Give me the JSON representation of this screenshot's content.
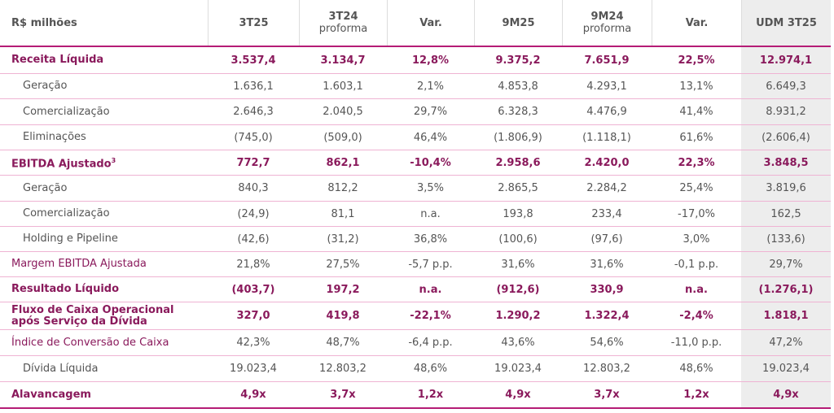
{
  "table": {
    "header": [
      {
        "title": "R$ milhões"
      },
      {
        "title": "3T25"
      },
      {
        "title": "3T24",
        "subtitle": "proforma"
      },
      {
        "title": "Var."
      },
      {
        "title": "9M25"
      },
      {
        "title": "9M24",
        "subtitle": "proforma"
      },
      {
        "title": "Var."
      },
      {
        "title": "UDM 3T25"
      }
    ],
    "rows": [
      {
        "label": "Receita Líquida",
        "values": [
          "3.537,4",
          "3.134,7",
          "12,8%",
          "9.375,2",
          "7.651,9",
          "22,5%",
          "12.974,1"
        ]
      },
      {
        "label": "Geração",
        "values": [
          "1.636,1",
          "1.603,1",
          "2,1%",
          "4.853,8",
          "4.293,1",
          "13,1%",
          "6.649,3"
        ]
      },
      {
        "label": "Comercialização",
        "values": [
          "2.646,3",
          "2.040,5",
          "29,7%",
          "6.328,3",
          "4.476,9",
          "41,4%",
          "8.931,2"
        ]
      },
      {
        "label": "Eliminações",
        "values": [
          "(745,0)",
          "(509,0)",
          "46,4%",
          "(1.806,9)",
          "(1.118,1)",
          "61,6%",
          "(2.606,4)"
        ]
      },
      {
        "label": "EBITDA Ajustado",
        "label_sup": "3",
        "values": [
          "772,7",
          "862,1",
          "-10,4%",
          "2.958,6",
          "2.420,0",
          "22,3%",
          "3.848,5"
        ]
      },
      {
        "label": "Geração",
        "values": [
          "840,3",
          "812,2",
          "3,5%",
          "2.865,5",
          "2.284,2",
          "25,4%",
          "3.819,6"
        ]
      },
      {
        "label": "Comercialização",
        "values": [
          "(24,9)",
          "81,1",
          "n.a.",
          "193,8",
          "233,4",
          "-17,0%",
          "162,5"
        ]
      },
      {
        "label": "Holding e Pipeline",
        "values": [
          "(42,6)",
          "(31,2)",
          "36,8%",
          "(100,6)",
          "(97,6)",
          "3,0%",
          "(133,6)"
        ]
      },
      {
        "label": "Margem EBITDA Ajustada",
        "values": [
          "21,8%",
          "27,5%",
          "-5,7 p.p.",
          "31,6%",
          "31,6%",
          "-0,1 p.p.",
          "29,7%"
        ]
      },
      {
        "label": "Resultado Líquido",
        "values": [
          "(403,7)",
          "197,2",
          "n.a.",
          "(912,6)",
          "330,9",
          "n.a.",
          "(1.276,1)"
        ]
      },
      {
        "label": "Fluxo de Caixa Operacional após Serviço da Dívida",
        "values": [
          "327,0",
          "419,8",
          "-22,1%",
          "1.290,2",
          "1.322,4",
          "-2,4%",
          "1.818,1"
        ]
      },
      {
        "label": "Índice de Conversão de Caixa",
        "values": [
          "42,3%",
          "48,7%",
          "-6,4 p.p.",
          "43,6%",
          "54,6%",
          "-11,0 p.p.",
          "47,2%"
        ]
      },
      {
        "label": "Dívida Líquida",
        "values": [
          "19.023,4",
          "12.803,2",
          "48,6%",
          "19.023,4",
          "12.803,2",
          "48,6%",
          "19.023,4"
        ]
      },
      {
        "label": "Alavancagem",
        "values": [
          "4,9x",
          "3,7x",
          "1,2x",
          "4,9x",
          "3,7x",
          "1,2x",
          "4,9x"
        ]
      }
    ]
  }
}
